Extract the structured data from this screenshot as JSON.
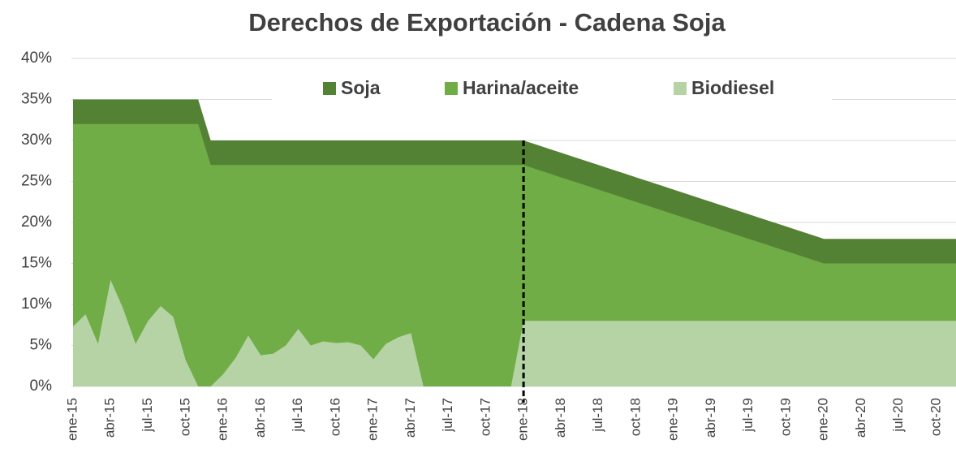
{
  "chart_data": {
    "type": "area",
    "title": "Derechos de Exportación - Cadena Soja",
    "categories": [
      "ene-15",
      null,
      null,
      "abr-15",
      null,
      null,
      "jul-15",
      null,
      null,
      "oct-15",
      null,
      null,
      "ene-16",
      null,
      null,
      "abr-16",
      null,
      null,
      "jul-16",
      null,
      null,
      "oct-16",
      null,
      null,
      "ene-17",
      null,
      null,
      "abr-17",
      null,
      null,
      "jul-17",
      null,
      null,
      "oct-17",
      null,
      null,
      "ene-18",
      null,
      null,
      "abr-18",
      null,
      null,
      "jul-18",
      null,
      null,
      "oct-18",
      null,
      null,
      "ene-19",
      null,
      null,
      "abr-19",
      null,
      null,
      "jul-19",
      null,
      null,
      "oct-19",
      null,
      null,
      "ene-20",
      null,
      null,
      "abr-20",
      null,
      null,
      "jul-20",
      null,
      null,
      "oct-20",
      null,
      null
    ],
    "series": [
      {
        "name": "Soja",
        "color": "#548235",
        "values": [
          35,
          35,
          35,
          35,
          35,
          35,
          35,
          35,
          35,
          35,
          35,
          30,
          30,
          30,
          30,
          30,
          30,
          30,
          30,
          30,
          30,
          30,
          30,
          30,
          30,
          30,
          30,
          30,
          30,
          30,
          30,
          30,
          30,
          30,
          30,
          30,
          30,
          29.5,
          29,
          28.5,
          28,
          27.5,
          27,
          26.5,
          26,
          25.5,
          25,
          24.5,
          24,
          23.5,
          23,
          22.5,
          22,
          21.5,
          21,
          20.5,
          20,
          19.5,
          19,
          18.5,
          18,
          18,
          18,
          18,
          18,
          18,
          18,
          18,
          18,
          18,
          18,
          18
        ]
      },
      {
        "name": "Harina/aceite",
        "color": "#70ad47",
        "values": [
          32,
          32,
          32,
          32,
          32,
          32,
          32,
          32,
          32,
          32,
          32,
          27,
          27,
          27,
          27,
          27,
          27,
          27,
          27,
          27,
          27,
          27,
          27,
          27,
          27,
          27,
          27,
          27,
          27,
          27,
          27,
          27,
          27,
          27,
          27,
          27,
          27,
          26.5,
          26,
          25.5,
          25,
          24.5,
          24,
          23.5,
          23,
          22.5,
          22,
          21.5,
          21,
          20.5,
          20,
          19.5,
          19,
          18.5,
          18,
          17.5,
          17,
          16.5,
          16,
          15.5,
          15,
          15,
          15,
          15,
          15,
          15,
          15,
          15,
          15,
          15,
          15,
          15
        ]
      },
      {
        "name": "Biodiesel",
        "color": "#b5d3a5",
        "values": [
          7.3,
          8.8,
          5.2,
          13,
          9.5,
          5.2,
          8,
          9.8,
          8.5,
          3.2,
          0,
          0,
          1.5,
          3.5,
          6.2,
          3.8,
          4,
          5,
          7,
          5,
          5.5,
          5.3,
          5.4,
          5,
          3.3,
          5.2,
          6,
          6.5,
          0,
          0,
          0,
          0,
          0,
          0,
          0,
          0,
          8,
          8,
          8,
          8,
          8,
          8,
          8,
          8,
          8,
          8,
          8,
          8,
          8,
          8,
          8,
          8,
          8,
          8,
          8,
          8,
          8,
          8,
          8,
          8,
          8,
          8,
          8,
          8,
          8,
          8,
          8,
          8,
          8,
          8,
          8,
          8
        ]
      }
    ],
    "vline_category_index": 36,
    "ylim": [
      0,
      40
    ],
    "yticks": [
      {
        "value": 0,
        "label": "0%"
      },
      {
        "value": 5,
        "label": "5%"
      },
      {
        "value": 10,
        "label": "10%"
      },
      {
        "value": 15,
        "label": "15%"
      },
      {
        "value": 20,
        "label": "20%"
      },
      {
        "value": 25,
        "label": "25%"
      },
      {
        "value": 30,
        "label": "30%"
      },
      {
        "value": 35,
        "label": "35%"
      },
      {
        "value": 40,
        "label": "40%"
      }
    ],
    "grid": true,
    "legend": "top"
  }
}
